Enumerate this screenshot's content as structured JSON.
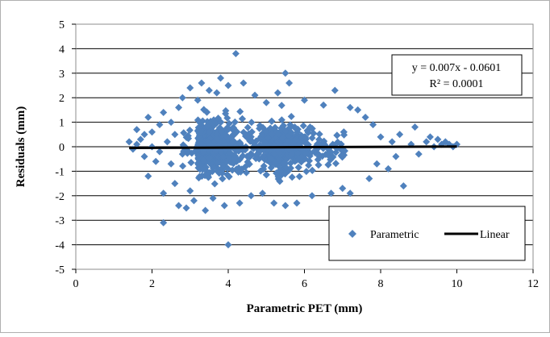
{
  "chart_data": {
    "type": "scatter",
    "title": "",
    "xlabel": "Parametric PET (mm)",
    "ylabel": "Residuals  (mm)",
    "xlim": [
      0,
      12
    ],
    "ylim": [
      -5,
      5
    ],
    "xticks": [
      0,
      2,
      4,
      6,
      8,
      10,
      12
    ],
    "yticks": [
      -5,
      -4,
      -3,
      -2,
      -1,
      0,
      1,
      2,
      3,
      4,
      5
    ],
    "grid": "horizontal major gridlines",
    "legend_position": "bottom-right",
    "annotation": {
      "equation": "y = 0.007x - 0.0601",
      "r2": "R² = 0.0001",
      "position": "top-right"
    },
    "colors": {
      "points": "#4f81bd",
      "trendline": "#000000"
    },
    "series": [
      {
        "name": "Parametric",
        "kind": "points",
        "marker": "diamond",
        "dense_cluster_note": "approximately 1500 points concentrated between x 2.7 and 7.2",
        "points": [
          [
            1.4,
            0.2
          ],
          [
            1.5,
            -0.1
          ],
          [
            1.6,
            0.1
          ],
          [
            1.6,
            0.7
          ],
          [
            1.7,
            0.3
          ],
          [
            1.8,
            -0.4
          ],
          [
            1.8,
            0.5
          ],
          [
            1.9,
            -1.2
          ],
          [
            1.9,
            1.2
          ],
          [
            2.0,
            0.0
          ],
          [
            2.0,
            0.6
          ],
          [
            2.1,
            -0.6
          ],
          [
            2.2,
            -0.2
          ],
          [
            2.2,
            0.9
          ],
          [
            2.3,
            -1.9
          ],
          [
            2.3,
            1.4
          ],
          [
            2.4,
            0.2
          ],
          [
            2.3,
            -3.1
          ],
          [
            2.5,
            -0.7
          ],
          [
            2.5,
            1.0
          ],
          [
            2.6,
            -1.5
          ],
          [
            2.6,
            0.5
          ],
          [
            2.7,
            -2.4
          ],
          [
            2.7,
            1.6
          ],
          [
            2.8,
            -0.3
          ],
          [
            2.8,
            2.0
          ],
          [
            2.9,
            -2.5
          ],
          [
            3.0,
            -1.8
          ],
          [
            3.0,
            2.4
          ],
          [
            3.1,
            -2.2
          ],
          [
            3.2,
            1.9
          ],
          [
            3.3,
            2.6
          ],
          [
            3.4,
            -2.6
          ],
          [
            3.5,
            2.3
          ],
          [
            3.6,
            -2.1
          ],
          [
            3.7,
            2.2
          ],
          [
            3.8,
            2.8
          ],
          [
            3.9,
            -2.4
          ],
          [
            4.0,
            2.5
          ],
          [
            4.0,
            -4.0
          ],
          [
            4.2,
            3.8
          ],
          [
            4.3,
            -2.3
          ],
          [
            4.4,
            2.6
          ],
          [
            4.6,
            -2.0
          ],
          [
            4.7,
            2.1
          ],
          [
            4.9,
            -1.9
          ],
          [
            5.0,
            1.8
          ],
          [
            5.2,
            -2.3
          ],
          [
            5.3,
            2.2
          ],
          [
            5.5,
            3.0
          ],
          [
            5.5,
            -2.4
          ],
          [
            5.6,
            2.6
          ],
          [
            5.8,
            -2.3
          ],
          [
            6.0,
            1.9
          ],
          [
            6.2,
            -2.0
          ],
          [
            6.5,
            1.7
          ],
          [
            6.7,
            -1.9
          ],
          [
            6.8,
            2.3
          ],
          [
            7.0,
            -1.7
          ],
          [
            7.2,
            1.6
          ],
          [
            7.2,
            -1.9
          ],
          [
            7.4,
            1.5
          ],
          [
            7.6,
            1.2
          ],
          [
            7.7,
            -1.3
          ],
          [
            7.8,
            0.9
          ],
          [
            7.9,
            -0.7
          ],
          [
            8.0,
            0.4
          ],
          [
            8.2,
            -0.9
          ],
          [
            8.3,
            0.2
          ],
          [
            8.4,
            -0.4
          ],
          [
            8.5,
            0.5
          ],
          [
            8.6,
            -1.6
          ],
          [
            8.8,
            0.1
          ],
          [
            8.9,
            0.8
          ],
          [
            9.0,
            -0.3
          ],
          [
            9.2,
            0.2
          ],
          [
            9.3,
            0.4
          ],
          [
            9.4,
            0.0
          ],
          [
            9.5,
            0.3
          ],
          [
            9.6,
            0.1
          ],
          [
            9.7,
            0.2
          ],
          [
            9.8,
            0.1
          ],
          [
            9.9,
            0.0
          ],
          [
            10.0,
            0.1
          ]
        ]
      },
      {
        "name": "Linear",
        "kind": "line",
        "points": [
          [
            1.4,
            -0.0503
          ],
          [
            10.0,
            0.0099
          ]
        ]
      }
    ]
  }
}
